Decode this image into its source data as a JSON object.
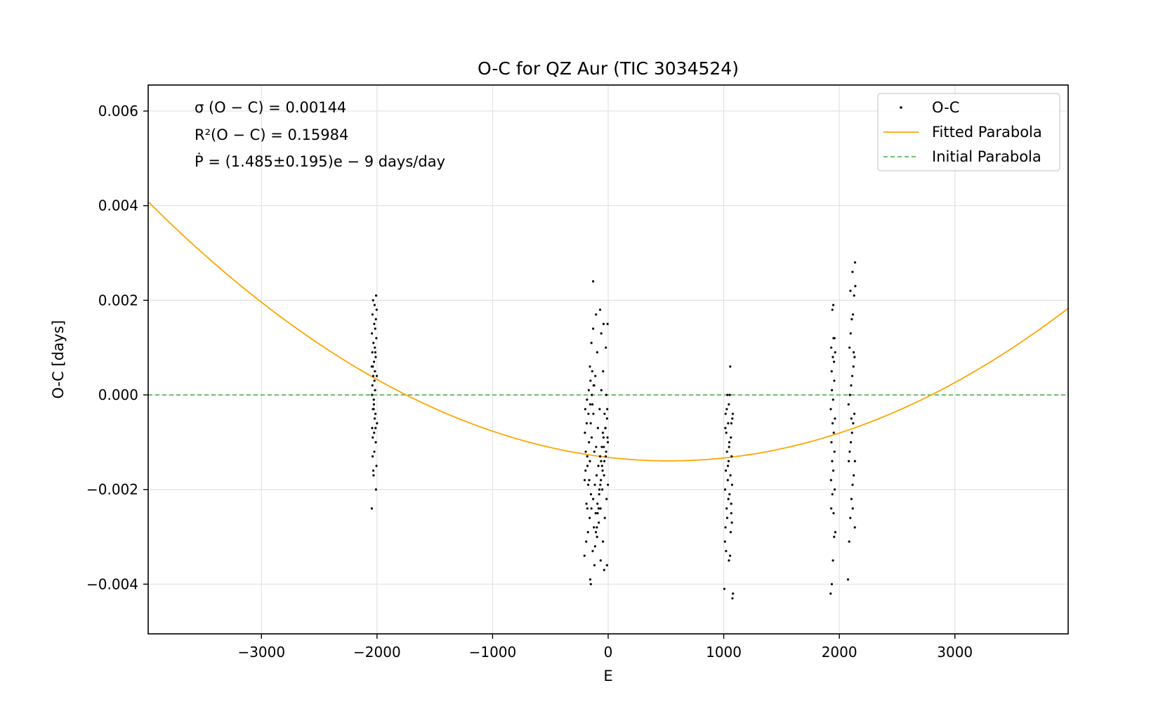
{
  "chart_data": {
    "type": "scatter",
    "title": "O-C for QZ Aur (TIC 3034524)",
    "xlabel": "E",
    "ylabel": "O-C [days]",
    "xlim": [
      -3980,
      3980
    ],
    "ylim": [
      -0.00505,
      0.00655
    ],
    "grid": true,
    "legend_position": "top-right",
    "x_ticks": [
      -3000,
      -2000,
      -1000,
      0,
      1000,
      2000,
      3000
    ],
    "x_tick_labels": [
      "−3000",
      "−2000",
      "−1000",
      "0",
      "1000",
      "2000",
      "3000"
    ],
    "y_ticks": [
      -0.004,
      -0.002,
      0.0,
      0.002,
      0.004,
      0.006
    ],
    "y_tick_labels": [
      "−0.004",
      "−0.002",
      "0.000",
      "0.002",
      "0.004",
      "0.006"
    ],
    "annotations": [
      "σ (O − C) = 0.00144",
      "R²(O − C) = 0.15984",
      "Ṗ = (1.485±0.195)e − 9 days/day"
    ],
    "series": [
      {
        "name": "O-C",
        "kind": "scatter",
        "color": "#000000",
        "points": [
          [
            -2045,
            -0.0024
          ],
          [
            -2030,
            -0.0017
          ],
          [
            -2038,
            -0.0013
          ],
          [
            -2025,
            -0.0008
          ],
          [
            -2042,
            -0.0007
          ],
          [
            -2020,
            -0.0005
          ],
          [
            -2035,
            -0.0003
          ],
          [
            -2028,
            -0.0001
          ],
          [
            -2040,
            0.0002
          ],
          [
            -2022,
            0.0003
          ],
          [
            -2033,
            0.0004
          ],
          [
            -2018,
            0.0005
          ],
          [
            -2036,
            0.0006
          ],
          [
            -2026,
            0.0007
          ],
          [
            -2012,
            0.0008
          ],
          [
            -2041,
            0.0009
          ],
          [
            -2019,
            0.001
          ],
          [
            -2031,
            0.0011
          ],
          [
            -2006,
            0.0012
          ],
          [
            -2044,
            0.0013
          ],
          [
            -2016,
            0.0014
          ],
          [
            -2024,
            0.0015
          ],
          [
            -2010,
            0.0016
          ],
          [
            -2039,
            0.0017
          ],
          [
            -2003,
            0.0018
          ],
          [
            -2021,
            0.0019
          ],
          [
            -2034,
            0.002
          ],
          [
            -2008,
            0.0021
          ],
          [
            -2027,
            -0.0002
          ],
          [
            -2014,
            -0.0004
          ],
          [
            -2000,
            -0.0006
          ],
          [
            -2037,
            -0.0009
          ],
          [
            -2011,
            -0.001
          ],
          [
            -2023,
            -0.0012
          ],
          [
            -2005,
            -0.0015
          ],
          [
            -2032,
            -0.0016
          ],
          [
            -2009,
            -0.002
          ],
          [
            -2043,
            0.0
          ],
          [
            -2017,
            0.0001
          ],
          [
            -2029,
            -0.0003
          ],
          [
            -2002,
            0.0004
          ],
          [
            -2015,
            0.0009
          ],
          [
            -2046,
            0.0006
          ],
          [
            -2013,
            -0.0007
          ],
          [
            -205,
            -0.0034
          ],
          [
            -190,
            -0.0031
          ],
          [
            -175,
            -0.0029
          ],
          [
            -160,
            -0.0026
          ],
          [
            -145,
            -0.0024
          ],
          [
            -130,
            -0.0022
          ],
          [
            -115,
            -0.0019
          ],
          [
            -100,
            -0.0017
          ],
          [
            -85,
            -0.0015
          ],
          [
            -70,
            -0.0013
          ],
          [
            -55,
            -0.0011
          ],
          [
            -40,
            -0.0009
          ],
          [
            -25,
            -0.0007
          ],
          [
            -10,
            -0.0005
          ],
          [
            -198,
            -0.0003
          ],
          [
            -183,
            -0.0001
          ],
          [
            -168,
            0.0001
          ],
          [
            -153,
            0.0003
          ],
          [
            -138,
            0.0005
          ],
          [
            -123,
            -0.0028
          ],
          [
            -108,
            -0.0025
          ],
          [
            -93,
            -0.0023
          ],
          [
            -78,
            -0.0021
          ],
          [
            -63,
            -0.0018
          ],
          [
            -48,
            -0.0016
          ],
          [
            -33,
            -0.0014
          ],
          [
            -18,
            -0.0012
          ],
          [
            -3,
            -0.001
          ],
          [
            -201,
            -0.0008
          ],
          [
            -186,
            -0.0006
          ],
          [
            -171,
            -0.0004
          ],
          [
            -156,
            -0.0002
          ],
          [
            -141,
            0.0
          ],
          [
            -126,
            0.0002
          ],
          [
            -111,
            0.0004
          ],
          [
            -96,
            -0.003
          ],
          [
            -81,
            -0.0027
          ],
          [
            -66,
            -0.0024
          ],
          [
            -51,
            -0.002
          ],
          [
            -36,
            -0.0017
          ],
          [
            -21,
            -0.0013
          ],
          [
            -6,
            -0.0009
          ],
          [
            -194,
            -0.0012
          ],
          [
            -179,
            -0.0015
          ],
          [
            -164,
            -0.0018
          ],
          [
            -149,
            -0.0021
          ],
          [
            -134,
            -0.0033
          ],
          [
            -119,
            -0.0036
          ],
          [
            -104,
            -0.0011
          ],
          [
            -89,
            -0.0007
          ],
          [
            -74,
            -0.0003
          ],
          [
            -59,
            0.0001
          ],
          [
            -44,
            0.0005
          ],
          [
            -29,
            -0.0026
          ],
          [
            -14,
            -0.0022
          ],
          [
            -2,
            -0.0019
          ],
          [
            -196,
            -0.0016
          ],
          [
            -181,
            -0.0013
          ],
          [
            -166,
            -0.001
          ],
          [
            -151,
            -0.0006
          ],
          [
            -136,
            -0.0002
          ],
          [
            -121,
            0.0002
          ],
          [
            -106,
            -0.0029
          ],
          [
            -91,
            -0.0025
          ],
          [
            -76,
            -0.002
          ],
          [
            -61,
            -0.0014
          ],
          [
            -46,
            -0.0008
          ],
          [
            -31,
            -0.0004
          ],
          [
            -16,
            0.0
          ],
          [
            -188,
            -0.0023
          ],
          [
            -173,
            -0.0019
          ],
          [
            -158,
            -0.0014
          ],
          [
            -143,
            -0.0009
          ],
          [
            -128,
            -0.0004
          ],
          [
            -113,
            -0.0032
          ],
          [
            -98,
            -0.0028
          ],
          [
            -83,
            -0.0024
          ],
          [
            -68,
            -0.0019
          ],
          [
            -53,
            -0.0015
          ],
          [
            -38,
            -0.0011
          ],
          [
            -23,
            -0.0007
          ],
          [
            -8,
            -0.0003
          ],
          [
            -203,
            -0.0018
          ],
          [
            -158,
            0.0006
          ],
          [
            -145,
            0.0011
          ],
          [
            -130,
            0.0014
          ],
          [
            -105,
            0.0017
          ],
          [
            -95,
            0.0009
          ],
          [
            -70,
            0.0018
          ],
          [
            -60,
            0.0013
          ],
          [
            -40,
            0.0015
          ],
          [
            -20,
            0.001
          ],
          [
            -5,
            0.0015
          ],
          [
            -130,
            0.0024
          ],
          [
            -155,
            -0.0039
          ],
          [
            -150,
            -0.004
          ],
          [
            -65,
            -0.0035
          ],
          [
            -35,
            -0.0037
          ],
          [
            -10,
            -0.0036
          ],
          [
            -180,
            -0.0024
          ],
          [
            -45,
            -0.0031
          ],
          [
            -120,
            -0.0012
          ],
          [
            1005,
            -0.0041
          ],
          [
            1075,
            -0.0043
          ],
          [
            1080,
            -0.0042
          ],
          [
            1010,
            -0.0031
          ],
          [
            1020,
            -0.0033
          ],
          [
            1045,
            -0.0035
          ],
          [
            1055,
            -0.0034
          ],
          [
            1015,
            -0.0028
          ],
          [
            1030,
            -0.0026
          ],
          [
            1060,
            -0.0029
          ],
          [
            1070,
            -0.0027
          ],
          [
            1025,
            -0.0024
          ],
          [
            1040,
            -0.0022
          ],
          [
            1065,
            -0.0025
          ],
          [
            1012,
            -0.002
          ],
          [
            1035,
            -0.0018
          ],
          [
            1050,
            -0.0021
          ],
          [
            1072,
            -0.0019
          ],
          [
            1018,
            -0.0016
          ],
          [
            1042,
            -0.0014
          ],
          [
            1058,
            -0.0017
          ],
          [
            1028,
            -0.0012
          ],
          [
            1048,
            -0.001
          ],
          [
            1068,
            -0.0013
          ],
          [
            1022,
            -0.0008
          ],
          [
            1038,
            -0.0006
          ],
          [
            1062,
            -0.0009
          ],
          [
            1016,
            -0.0004
          ],
          [
            1044,
            -0.0002
          ],
          [
            1074,
            -0.0005
          ],
          [
            1032,
            0.0
          ],
          [
            1052,
            0.0
          ],
          [
            1026,
            -0.0003
          ],
          [
            1066,
            -0.0006
          ],
          [
            1046,
            -0.0011
          ],
          [
            1036,
            -0.0015
          ],
          [
            1056,
            0.0006
          ],
          [
            1014,
            -0.0007
          ],
          [
            1078,
            -0.0004
          ],
          [
            1064,
            -0.0023
          ],
          [
            1925,
            -0.0042
          ],
          [
            1935,
            -0.004
          ],
          [
            1945,
            -0.0035
          ],
          [
            1955,
            -0.003
          ],
          [
            1965,
            -0.0029
          ],
          [
            1950,
            -0.0025
          ],
          [
            1930,
            -0.0024
          ],
          [
            1940,
            -0.0021
          ],
          [
            1960,
            -0.002
          ],
          [
            1928,
            -0.0018
          ],
          [
            1948,
            -0.0016
          ],
          [
            1938,
            -0.0014
          ],
          [
            1958,
            -0.0012
          ],
          [
            1932,
            -0.001
          ],
          [
            1952,
            -0.0008
          ],
          [
            1942,
            -0.0006
          ],
          [
            1962,
            -0.0005
          ],
          [
            1926,
            -0.0003
          ],
          [
            1946,
            -0.0001
          ],
          [
            1936,
            0.0001
          ],
          [
            1956,
            0.0003
          ],
          [
            1934,
            0.0005
          ],
          [
            1954,
            0.0007
          ],
          [
            1944,
            0.0008
          ],
          [
            1964,
            0.0009
          ],
          [
            1930,
            0.001
          ],
          [
            1950,
            0.0012
          ],
          [
            1940,
            0.0018
          ],
          [
            1948,
            0.0019
          ],
          [
            1958,
            0.0012
          ],
          [
            2075,
            -0.0039
          ],
          [
            2085,
            -0.0031
          ],
          [
            2095,
            -0.0026
          ],
          [
            2105,
            -0.0022
          ],
          [
            2115,
            -0.0019
          ],
          [
            2125,
            -0.0017
          ],
          [
            2135,
            -0.0014
          ],
          [
            2090,
            -0.0012
          ],
          [
            2100,
            -0.001
          ],
          [
            2110,
            -0.0008
          ],
          [
            2120,
            -0.0006
          ],
          [
            2130,
            -0.0004
          ],
          [
            2080,
            -0.0002
          ],
          [
            2092,
            0.0
          ],
          [
            2102,
            0.0002
          ],
          [
            2112,
            0.0004
          ],
          [
            2122,
            0.0006
          ],
          [
            2132,
            0.0008
          ],
          [
            2088,
            0.001
          ],
          [
            2098,
            0.0013
          ],
          [
            2108,
            0.0016
          ],
          [
            2118,
            0.0017
          ],
          [
            2128,
            0.0021
          ],
          [
            2096,
            0.0022
          ],
          [
            2138,
            0.0023
          ],
          [
            2114,
            0.0026
          ],
          [
            2136,
            0.0028
          ],
          [
            2082,
            -0.0014
          ],
          [
            2104,
            -0.0005
          ],
          [
            2124,
            0.0009
          ],
          [
            2134,
            -0.0028
          ],
          [
            2116,
            -0.0024
          ]
        ]
      },
      {
        "name": "Fitted Parabola",
        "kind": "line",
        "color": "#ffa500",
        "equation": {
          "a": 2.7e-10,
          "b": -2.83e-07,
          "c": -0.00132
        }
      },
      {
        "name": "Initial Parabola",
        "kind": "line",
        "style": "dashed",
        "color": "#5cb85c",
        "equation": {
          "a": 0,
          "b": 0,
          "c": 0
        }
      }
    ]
  }
}
